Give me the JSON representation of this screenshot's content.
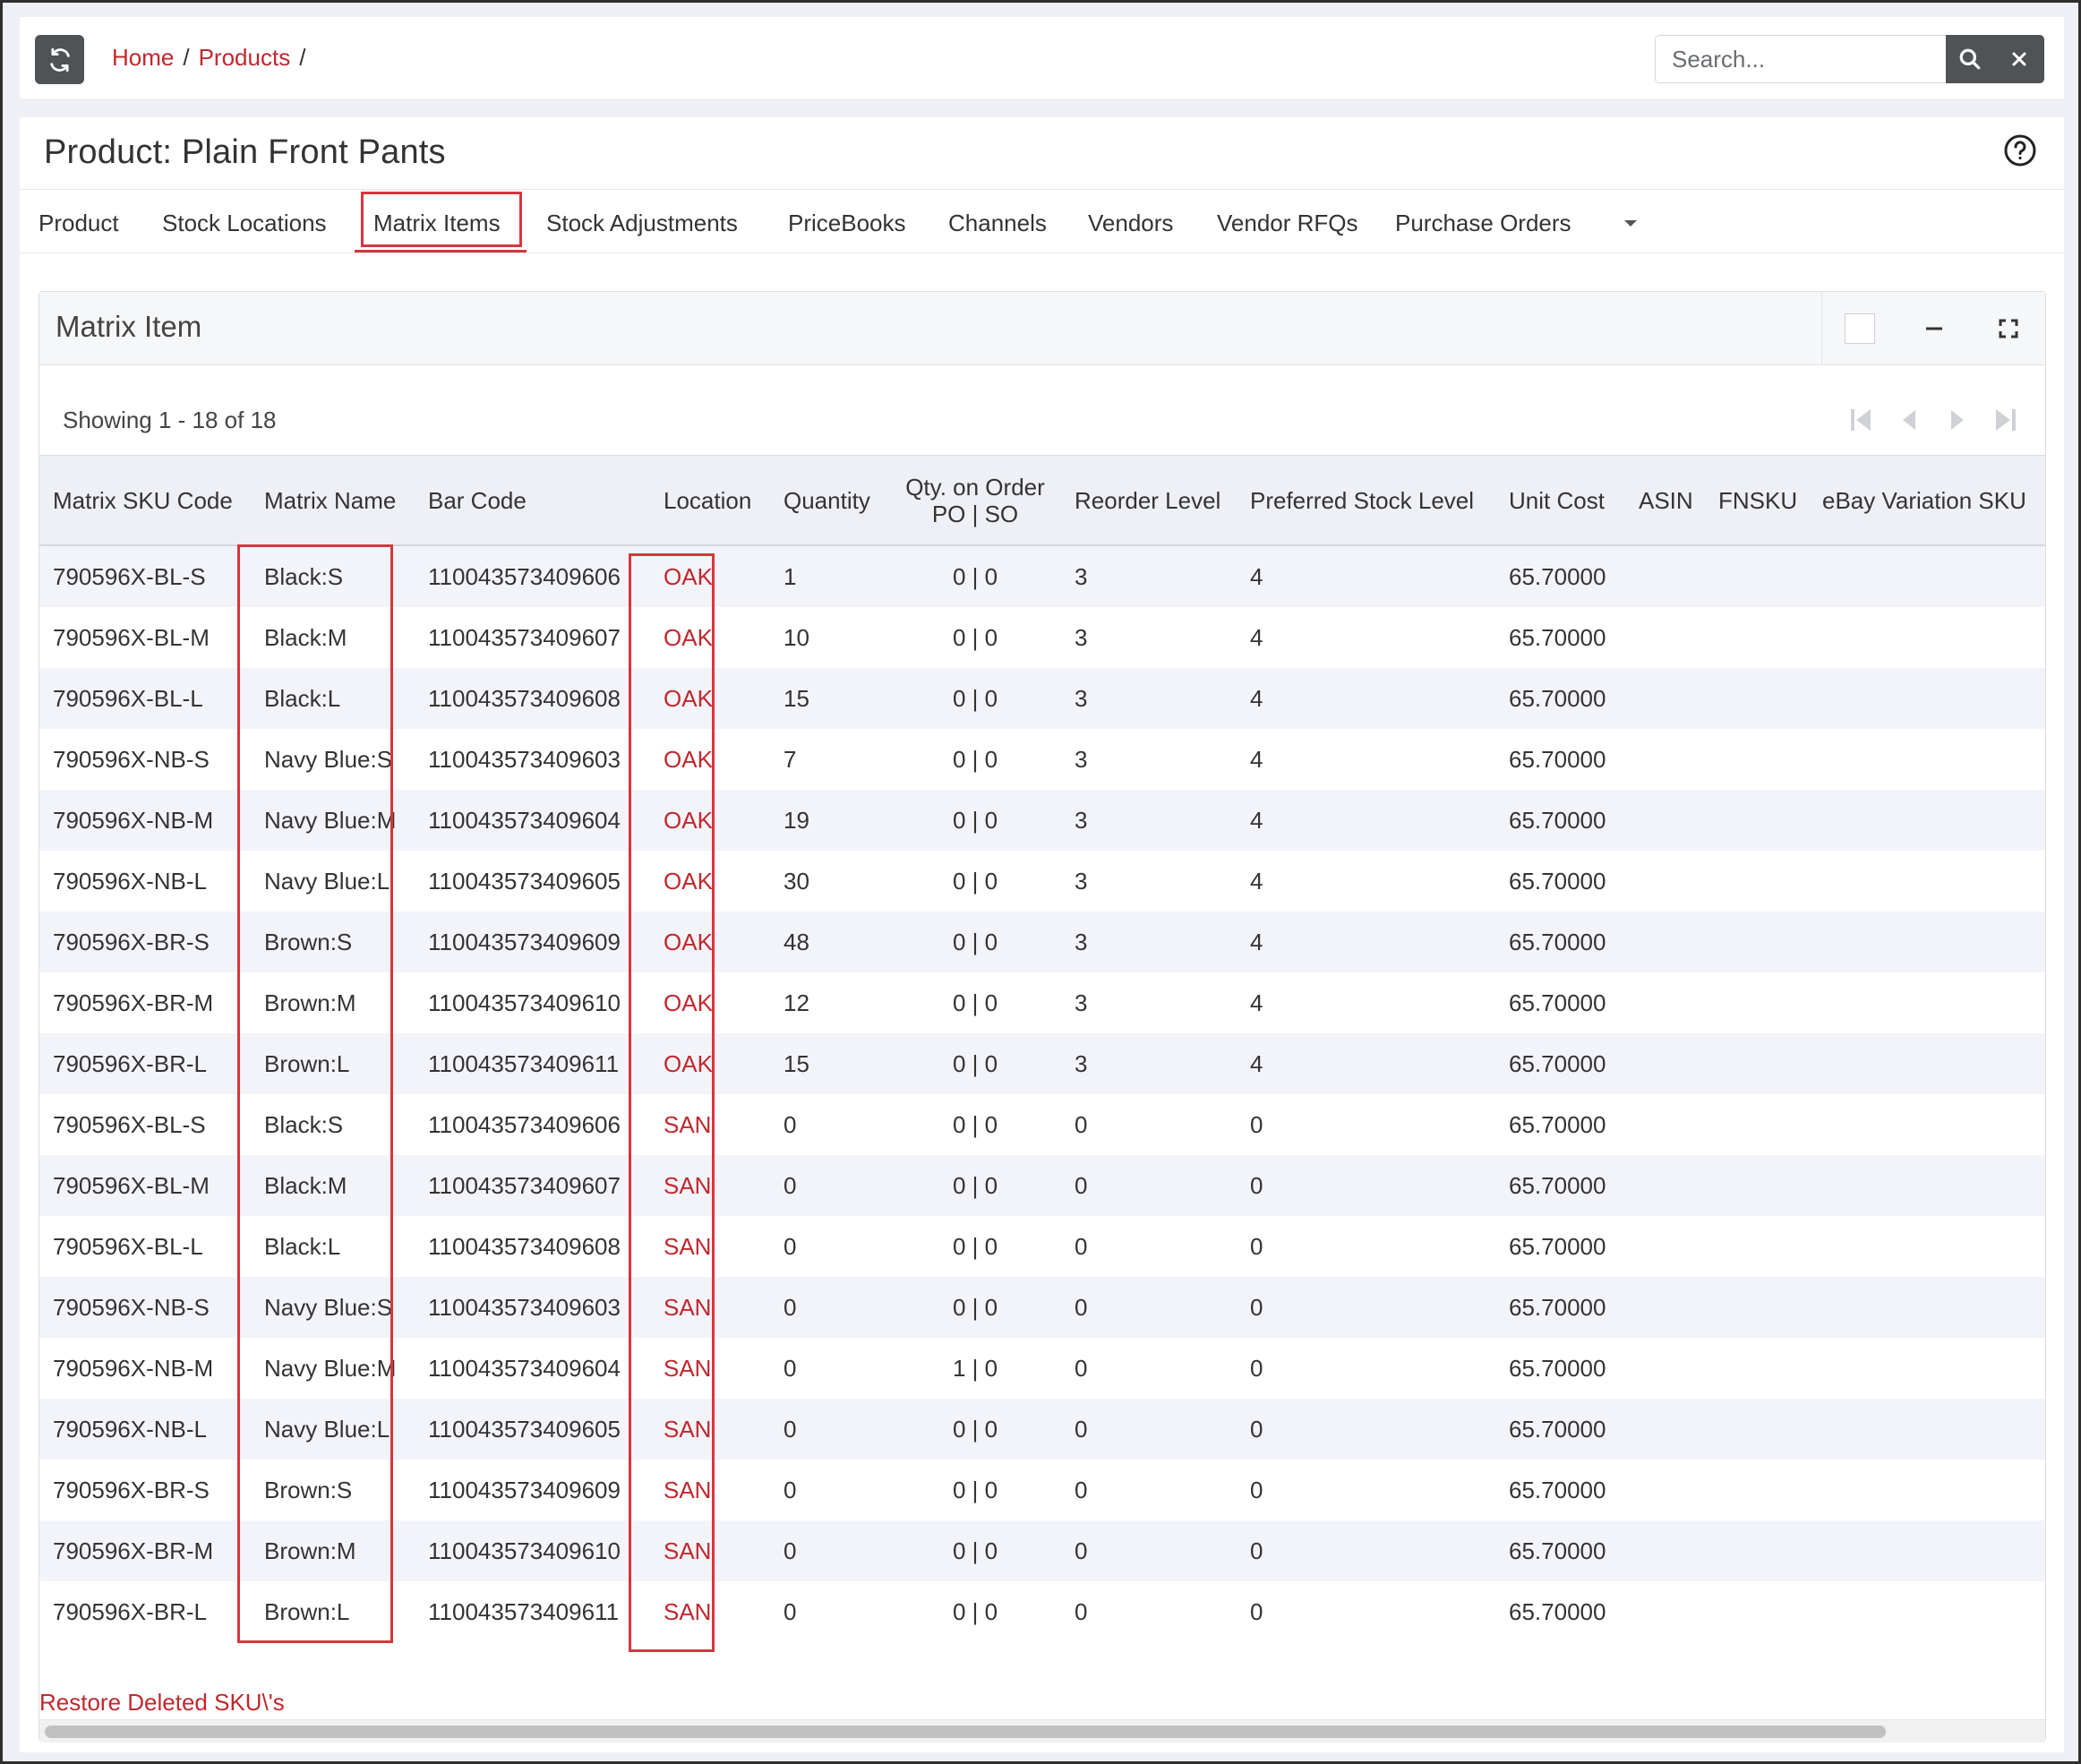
{
  "breadcrumb": {
    "home": "Home",
    "products": "Products",
    "sep": "/"
  },
  "search": {
    "placeholder": "Search..."
  },
  "page": {
    "title": "Product: Plain Front Pants"
  },
  "tabs": [
    {
      "label": "Product"
    },
    {
      "label": "Stock Locations"
    },
    {
      "label": "Matrix Items"
    },
    {
      "label": "Stock Adjustments"
    },
    {
      "label": "PriceBooks"
    },
    {
      "label": "Channels"
    },
    {
      "label": "Vendors"
    },
    {
      "label": "Vendor RFQs"
    },
    {
      "label": "Purchase Orders"
    }
  ],
  "matrix": {
    "title": "Matrix Item",
    "showing": "Showing 1 - 18 of 18",
    "restore_link": "Restore Deleted SKU\\'s"
  },
  "columns": [
    {
      "label": "Matrix SKU Code"
    },
    {
      "label": "Matrix Name"
    },
    {
      "label": "Bar Code"
    },
    {
      "label": "Location"
    },
    {
      "label": "Quantity"
    },
    {
      "label": "Qty. on Order",
      "sub": "PO | SO"
    },
    {
      "label": "Reorder Level"
    },
    {
      "label": "Preferred Stock Level"
    },
    {
      "label": "Unit Cost"
    },
    {
      "label": "ASIN"
    },
    {
      "label": "FNSKU"
    },
    {
      "label": "eBay Variation SKU"
    }
  ],
  "rows": [
    {
      "sku": "790596X-BL-S",
      "name": "Black:S",
      "barcode": "110043573409606",
      "location": "OAK",
      "qty": "1",
      "on_order": "0 | 0",
      "reorder": "3",
      "preferred": "4",
      "cost": "65.70000"
    },
    {
      "sku": "790596X-BL-M",
      "name": "Black:M",
      "barcode": "110043573409607",
      "location": "OAK",
      "qty": "10",
      "on_order": "0 | 0",
      "reorder": "3",
      "preferred": "4",
      "cost": "65.70000"
    },
    {
      "sku": "790596X-BL-L",
      "name": "Black:L",
      "barcode": "110043573409608",
      "location": "OAK",
      "qty": "15",
      "on_order": "0 | 0",
      "reorder": "3",
      "preferred": "4",
      "cost": "65.70000"
    },
    {
      "sku": "790596X-NB-S",
      "name": "Navy Blue:S",
      "barcode": "110043573409603",
      "location": "OAK",
      "qty": "7",
      "on_order": "0 | 0",
      "reorder": "3",
      "preferred": "4",
      "cost": "65.70000"
    },
    {
      "sku": "790596X-NB-M",
      "name": "Navy Blue:M",
      "barcode": "110043573409604",
      "location": "OAK",
      "qty": "19",
      "on_order": "0 | 0",
      "reorder": "3",
      "preferred": "4",
      "cost": "65.70000"
    },
    {
      "sku": "790596X-NB-L",
      "name": "Navy Blue:L",
      "barcode": "110043573409605",
      "location": "OAK",
      "qty": "30",
      "on_order": "0 | 0",
      "reorder": "3",
      "preferred": "4",
      "cost": "65.70000"
    },
    {
      "sku": "790596X-BR-S",
      "name": "Brown:S",
      "barcode": "110043573409609",
      "location": "OAK",
      "qty": "48",
      "on_order": "0 | 0",
      "reorder": "3",
      "preferred": "4",
      "cost": "65.70000"
    },
    {
      "sku": "790596X-BR-M",
      "name": "Brown:M",
      "barcode": "110043573409610",
      "location": "OAK",
      "qty": "12",
      "on_order": "0 | 0",
      "reorder": "3",
      "preferred": "4",
      "cost": "65.70000"
    },
    {
      "sku": "790596X-BR-L",
      "name": "Brown:L",
      "barcode": "110043573409611",
      "location": "OAK",
      "qty": "15",
      "on_order": "0 | 0",
      "reorder": "3",
      "preferred": "4",
      "cost": "65.70000"
    },
    {
      "sku": "790596X-BL-S",
      "name": "Black:S",
      "barcode": "110043573409606",
      "location": "SAN",
      "qty": "0",
      "on_order": "0 | 0",
      "reorder": "0",
      "preferred": "0",
      "cost": "65.70000"
    },
    {
      "sku": "790596X-BL-M",
      "name": "Black:M",
      "barcode": "110043573409607",
      "location": "SAN",
      "qty": "0",
      "on_order": "0 | 0",
      "reorder": "0",
      "preferred": "0",
      "cost": "65.70000"
    },
    {
      "sku": "790596X-BL-L",
      "name": "Black:L",
      "barcode": "110043573409608",
      "location": "SAN",
      "qty": "0",
      "on_order": "0 | 0",
      "reorder": "0",
      "preferred": "0",
      "cost": "65.70000"
    },
    {
      "sku": "790596X-NB-S",
      "name": "Navy Blue:S",
      "barcode": "110043573409603",
      "location": "SAN",
      "qty": "0",
      "on_order": "0 | 0",
      "reorder": "0",
      "preferred": "0",
      "cost": "65.70000"
    },
    {
      "sku": "790596X-NB-M",
      "name": "Navy Blue:M",
      "barcode": "110043573409604",
      "location": "SAN",
      "qty": "0",
      "on_order": "1 | 0",
      "reorder": "0",
      "preferred": "0",
      "cost": "65.70000"
    },
    {
      "sku": "790596X-NB-L",
      "name": "Navy Blue:L",
      "barcode": "110043573409605",
      "location": "SAN",
      "qty": "0",
      "on_order": "0 | 0",
      "reorder": "0",
      "preferred": "0",
      "cost": "65.70000"
    },
    {
      "sku": "790596X-BR-S",
      "name": "Brown:S",
      "barcode": "110043573409609",
      "location": "SAN",
      "qty": "0",
      "on_order": "0 | 0",
      "reorder": "0",
      "preferred": "0",
      "cost": "65.70000"
    },
    {
      "sku": "790596X-BR-M",
      "name": "Brown:M",
      "barcode": "110043573409610",
      "location": "SAN",
      "qty": "0",
      "on_order": "0 | 0",
      "reorder": "0",
      "preferred": "0",
      "cost": "65.70000"
    },
    {
      "sku": "790596X-BR-L",
      "name": "Brown:L",
      "barcode": "110043573409611",
      "location": "SAN",
      "qty": "0",
      "on_order": "0 | 0",
      "reorder": "0",
      "preferred": "0",
      "cost": "65.70000"
    }
  ],
  "colors": {
    "accent": "#c0282e",
    "highlight": "#d8353c",
    "button": "#505355"
  },
  "icons": {
    "refresh": "refresh-icon",
    "search": "search-icon",
    "clear": "close-icon",
    "help": "help-circle-icon",
    "tab_more": "caret-down-icon",
    "minimize": "minus-icon",
    "fullscreen": "expand-icon",
    "first": "first-page-icon",
    "prev": "prev-page-icon",
    "next": "next-page-icon",
    "last": "last-page-icon"
  }
}
